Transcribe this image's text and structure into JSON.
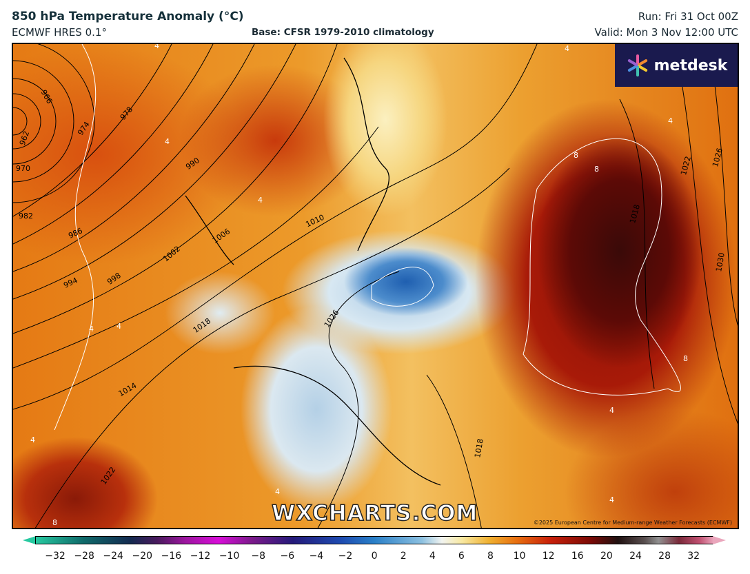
{
  "header": {
    "title": "850 hPa Temperature Anomaly (°C)",
    "model": "ECMWF HRES 0.1°",
    "base": "Base: CFSR 1979-2010 climatology",
    "run": "Run: Fri 31 Oct 00Z",
    "valid": "Valid: Mon 3 Nov 12:00 UTC"
  },
  "logo": {
    "text": "metdesk"
  },
  "watermark": "WXCHARTS.COM",
  "copyright": "©2025 European Centre for Medium-range Weather Forecasts (ECMWF)",
  "isobar_labels": [
    "966",
    "962",
    "970",
    "974",
    "978",
    "982",
    "986",
    "990",
    "994",
    "998",
    "1002",
    "1006",
    "1010",
    "1014",
    "1018",
    "1022",
    "1026",
    "1018",
    "1018",
    "1022",
    "1026",
    "1030"
  ],
  "anomaly_labels": [
    "8",
    "8",
    "8",
    "8",
    "4",
    "4",
    "4",
    "4",
    "4",
    "4",
    "4",
    "4",
    "4",
    "4",
    "4"
  ],
  "colorbar": {
    "ticks": [
      "−32",
      "−28",
      "−24",
      "−20",
      "−16",
      "−12",
      "−10",
      "−8",
      "−6",
      "−4",
      "−2",
      "0",
      "2",
      "4",
      "6",
      "8",
      "10",
      "12",
      "16",
      "20",
      "24",
      "28",
      "32"
    ],
    "unit": "°C"
  }
}
